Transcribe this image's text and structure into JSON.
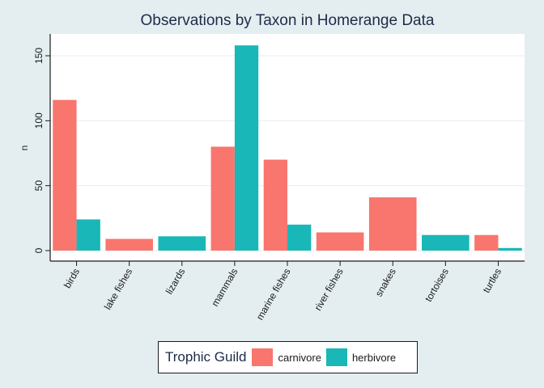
{
  "chart_data": {
    "type": "bar",
    "title": "Observations by Taxon in Homerange Data",
    "xlabel": "",
    "ylabel": "n",
    "ylim": [
      0,
      165
    ],
    "yticks": [
      0,
      50,
      100,
      150
    ],
    "grid": true,
    "categories": [
      "birds",
      "lake fishes",
      "lizards",
      "mammals",
      "marine fishes",
      "river fishes",
      "snakes",
      "tortoises",
      "turtles"
    ],
    "series": [
      {
        "name": "carnivore",
        "color": "#f8766d",
        "values": [
          116,
          9,
          null,
          80,
          70,
          14,
          41,
          null,
          12
        ]
      },
      {
        "name": "herbivore",
        "color": "#19b7b7",
        "values": [
          24,
          null,
          11,
          158,
          20,
          null,
          null,
          12,
          2
        ]
      }
    ],
    "legend": {
      "title": "Trophic Guild",
      "position": "bottom"
    }
  }
}
